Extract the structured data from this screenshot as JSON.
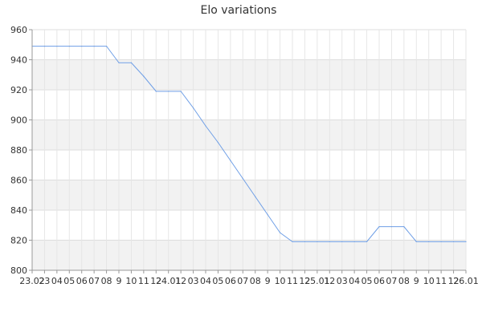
{
  "chart_data": {
    "type": "line",
    "title": "Elo variations",
    "xlabel": "",
    "ylabel": "",
    "ylim": [
      800,
      960
    ],
    "yticks": [
      800,
      820,
      840,
      860,
      880,
      900,
      920,
      940,
      960
    ],
    "x_tick_labels": [
      "23.02",
      "23",
      "04",
      "05",
      "06",
      "07",
      "08",
      "9",
      "10",
      "11",
      "12",
      "24.01",
      "12",
      "03",
      "04",
      "05",
      "06",
      "07",
      "08",
      "9",
      "10",
      "11",
      "12",
      "25.01",
      "12",
      "03",
      "04",
      "05",
      "06",
      "07",
      "08",
      "9",
      "10",
      "11",
      "12",
      "26.01"
    ],
    "grid": true,
    "legend": "none",
    "series": [
      {
        "values": [
          949,
          949,
          949,
          949,
          949,
          949,
          949,
          938,
          938,
          929,
          919,
          919,
          919,
          908,
          896,
          885,
          873,
          861,
          849,
          837,
          825,
          819,
          819,
          819,
          819,
          819,
          819,
          819,
          829,
          829,
          829,
          819,
          819,
          819,
          819,
          819
        ]
      }
    ],
    "colors": {
      "line": "#6f9fe6",
      "band": "#f2f2f2",
      "grid": "#dddddd",
      "axis": "#999999",
      "text": "#333333"
    }
  }
}
